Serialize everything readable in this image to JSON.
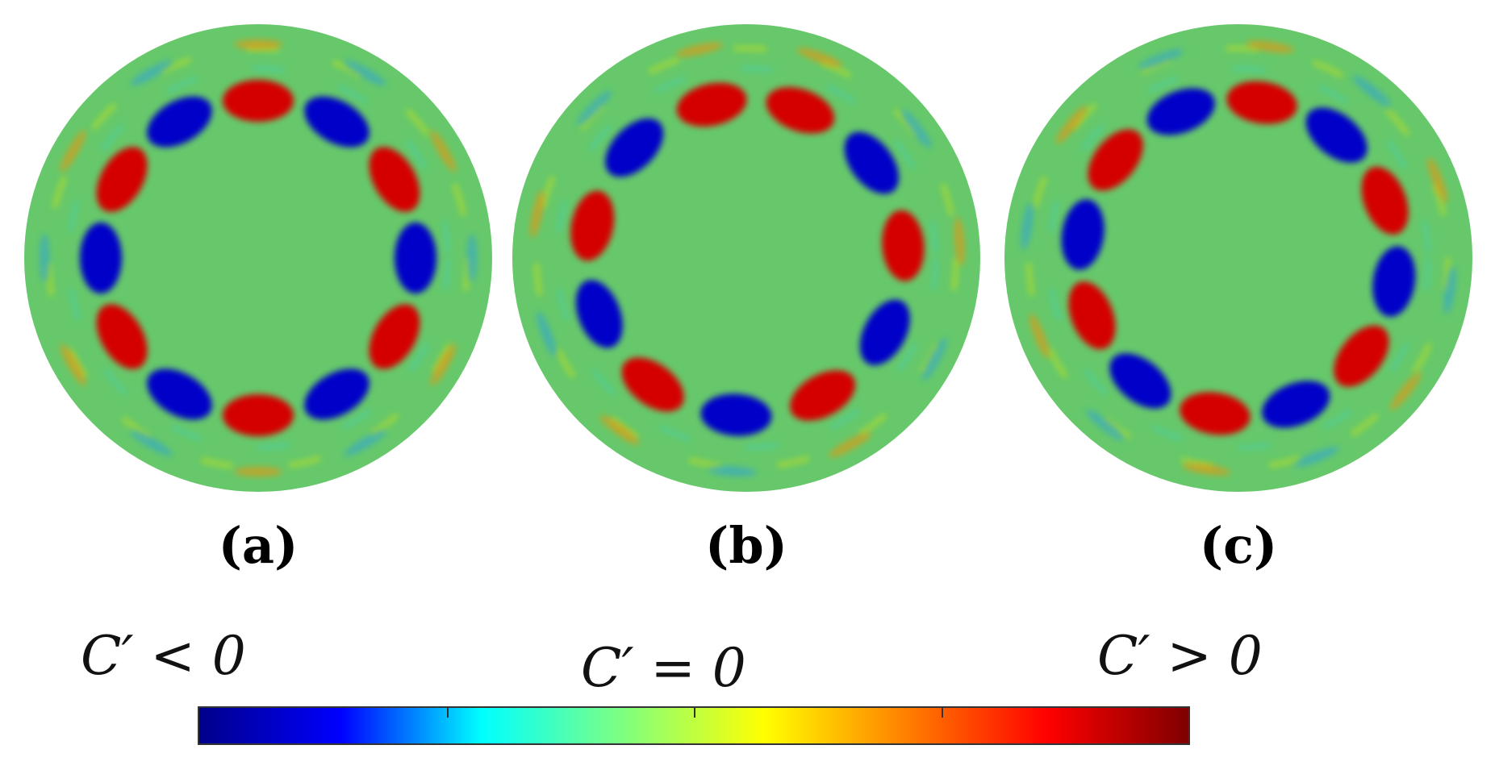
{
  "panels": [
    {
      "label": "(a)",
      "modes": 12,
      "phase": 0.0
    },
    {
      "label": "(b)",
      "modes": 11,
      "phase": 0.35
    },
    {
      "label": "(c)",
      "modes": 12,
      "phase": 0.15
    }
  ],
  "colorbar": {
    "label_negative": "C′ < 0",
    "label_zero": "C′ = 0",
    "label_positive": "C′ > 0",
    "stops": [
      "#00008b",
      "#0000ff",
      "#00ffff",
      "#7fff7f",
      "#ffff00",
      "#ff8000",
      "#ff0000",
      "#7f0000"
    ],
    "field_background": "#66c86a"
  }
}
